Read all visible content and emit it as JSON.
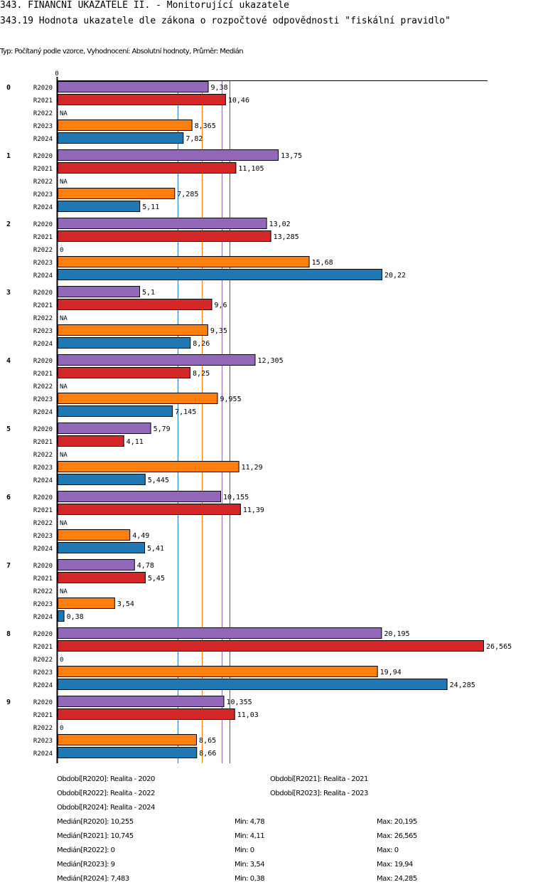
{
  "header": {
    "title": "343. FINANČNÍ UKAZATELE II. - Monitorující ukazatele",
    "subtitle": "343.19 Hodnota ukazatele dle zákona o rozpočtové odpovědnosti \"fiskální pravidlo\"",
    "info": "Typ: Počítaný podle vzorce, Vyhodnocení: Absolutní hodnoty, Průměr: Medián"
  },
  "chart_data": {
    "type": "bar",
    "orientation": "horizontal",
    "title": "343.19 Hodnota ukazatele dle zákona o rozpočtové odpovědnosti \"fiskální pravidlo\"",
    "xlabel": "",
    "ylabel": "",
    "x_tick_labels": [
      "0"
    ],
    "xlim": [
      0,
      27.2
    ],
    "grid": false,
    "categories": [
      "0",
      "1",
      "2",
      "3",
      "4",
      "5",
      "6",
      "7",
      "8",
      "9"
    ],
    "series": [
      {
        "name": "R2020",
        "color": "#9467bd",
        "values": [
          9.38,
          13.75,
          13.02,
          5.1,
          12.305,
          5.79,
          10.155,
          4.78,
          20.195,
          10.355
        ],
        "labels": [
          "9,38",
          "13,75",
          "13,02",
          "5,1",
          "12,305",
          "5,79",
          "10,155",
          "4,78",
          "20,195",
          "10,355"
        ]
      },
      {
        "name": "R2021",
        "color": "#d62728",
        "values": [
          10.46,
          11.105,
          13.285,
          9.6,
          8.25,
          4.11,
          11.39,
          5.45,
          26.565,
          11.03
        ],
        "labels": [
          "10,46",
          "11,105",
          "13,285",
          "9,6",
          "8,25",
          "4,11",
          "11,39",
          "5,45",
          "26,565",
          "11,03"
        ]
      },
      {
        "name": "R2022",
        "color": "#2ca02c",
        "values": [
          null,
          null,
          0,
          null,
          null,
          null,
          null,
          null,
          0,
          0
        ],
        "labels": [
          "NA",
          "NA",
          "0",
          "NA",
          "NA",
          "NA",
          "NA",
          "NA",
          "0",
          "0"
        ]
      },
      {
        "name": "R2023",
        "color": "#ff7f0e",
        "values": [
          8.365,
          7.285,
          15.68,
          9.35,
          9.955,
          11.29,
          4.49,
          3.54,
          19.94,
          8.65
        ],
        "labels": [
          "8,365",
          "7,285",
          "15,68",
          "9,35",
          "9,955",
          "11,29",
          "4,49",
          "3,54",
          "19,94",
          "8,65"
        ]
      },
      {
        "name": "R2024",
        "color": "#1f77b4",
        "values": [
          7.82,
          5.11,
          20.22,
          8.26,
          7.145,
          5.445,
          5.41,
          0.38,
          24.285,
          8.66
        ],
        "labels": [
          "7,82",
          "5,11",
          "20,22",
          "8,26",
          "7,145",
          "5,445",
          "5,41",
          "0,38",
          "24,285",
          "8,66"
        ]
      }
    ],
    "median_lines": [
      {
        "series": "R2024",
        "value": 7.483,
        "color": "#1f77b4"
      },
      {
        "series": "R2023",
        "value": 9,
        "color": "#ff7f0e"
      },
      {
        "series": "R2020",
        "value": 10.255,
        "color": "#9467bd"
      },
      {
        "series": "R2021",
        "value": 10.745,
        "color": "#d62728"
      }
    ]
  },
  "legend": {
    "periods": [
      "Období[R2020]: Realita - 2020",
      "Období[R2021]: Realita - 2021",
      "Období[R2022]: Realita - 2022",
      "Období[R2023]: Realita - 2023",
      "Období[R2024]: Realita - 2024"
    ],
    "stats": [
      {
        "median": "Medián[R2020]: 10,255",
        "min": "Min: 4,78",
        "max": "Max: 20,195"
      },
      {
        "median": "Medián[R2021]: 10,745",
        "min": "Min: 4,11",
        "max": "Max: 26,565"
      },
      {
        "median": "Medián[R2022]: 0",
        "min": "Min: 0",
        "max": "Max: 0"
      },
      {
        "median": "Medián[R2023]: 9",
        "min": "Min: 3,54",
        "max": "Max: 19,94"
      },
      {
        "median": "Medián[R2024]: 7,483",
        "min": "Min: 0,38",
        "max": "Max: 24,285"
      }
    ]
  }
}
